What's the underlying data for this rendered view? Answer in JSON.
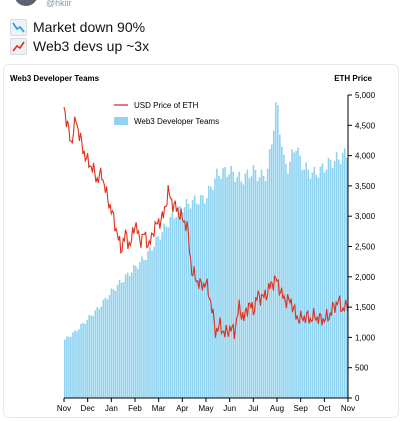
{
  "tweet": {
    "handle": "@hkiir",
    "line1": "Market down 90%",
    "line2": "Web3 devs up ~3x",
    "line1_icon": "chart-decreasing-icon",
    "line2_icon": "chart-increasing-icon"
  },
  "colors": {
    "bars": "#8fd3f0",
    "line": "#e0301e",
    "text": "#000000"
  },
  "chart_data": {
    "type": "bar",
    "title_left": "Web3 Developer Teams",
    "title_right": "ETH Price",
    "legend": [
      "USD Price of ETH",
      "Web3 Developer Teams"
    ],
    "legend_position": "top-left",
    "x_tick_labels": [
      "Nov",
      "Dec",
      "Jan",
      "Feb",
      "Mar",
      "Apr",
      "May",
      "Jun",
      "Jul",
      "Aug",
      "Sep",
      "Oct",
      "Nov"
    ],
    "y_right": {
      "min": 0,
      "max": 5000,
      "ticks": [
        "0",
        "500",
        "1,000",
        "1,500",
        "2,000",
        "2,500",
        "3,000",
        "3,500",
        "4,000",
        "4,500",
        "5,000"
      ]
    },
    "series": [
      {
        "name": "Web3 Developer Teams",
        "kind": "bar",
        "t": [
          0,
          0.5,
          1,
          1.5,
          2,
          2.5,
          3,
          3.5,
          4,
          4.5,
          5,
          5.5,
          6,
          6.5,
          7,
          7.5,
          8,
          8.3,
          8.6,
          9,
          9.3,
          9.5,
          9.8,
          10,
          10.3,
          10.6,
          11,
          11.3,
          11.6,
          12
        ],
        "values": [
          950,
          1100,
          1300,
          1500,
          1750,
          1950,
          2150,
          2350,
          2650,
          2950,
          3150,
          3250,
          3300,
          3700,
          3750,
          3600,
          3750,
          3650,
          3700,
          4900,
          3900,
          3800,
          4200,
          3900,
          3750,
          3700,
          3800,
          3900,
          3950,
          4050
        ]
      },
      {
        "name": "USD Price of ETH",
        "kind": "line",
        "t": [
          0,
          0.15,
          0.3,
          0.5,
          0.8,
          1.0,
          1.2,
          1.4,
          1.6,
          1.8,
          2.0,
          2.2,
          2.4,
          2.6,
          2.8,
          3.0,
          3.2,
          3.4,
          3.6,
          3.8,
          4.0,
          4.2,
          4.4,
          4.6,
          4.8,
          5.0,
          5.2,
          5.4,
          5.6,
          5.8,
          6.0,
          6.2,
          6.4,
          6.6,
          6.8,
          7.0,
          7.2,
          7.4,
          7.6,
          7.8,
          8.0,
          8.2,
          8.4,
          8.6,
          8.8,
          9.0,
          9.2,
          9.4,
          9.6,
          9.8,
          10.0,
          10.2,
          10.4,
          10.6,
          10.8,
          11.0,
          11.2,
          11.4,
          11.6,
          11.8,
          12.0
        ],
        "values": [
          4800,
          4500,
          4200,
          4600,
          4100,
          3900,
          3800,
          3600,
          3700,
          3350,
          3100,
          2800,
          2450,
          2700,
          2500,
          2900,
          2600,
          2700,
          2500,
          2800,
          2900,
          3000,
          3400,
          3200,
          3100,
          2950,
          2850,
          2100,
          1950,
          1850,
          1900,
          1600,
          1100,
          1200,
          1050,
          1150,
          1100,
          1500,
          1300,
          1550,
          1450,
          1700,
          1650,
          1750,
          1900,
          1950,
          1700,
          1600,
          1600,
          1350,
          1300,
          1350,
          1300,
          1350,
          1300,
          1300,
          1350,
          1500,
          1600,
          1450,
          1550
        ]
      }
    ]
  }
}
